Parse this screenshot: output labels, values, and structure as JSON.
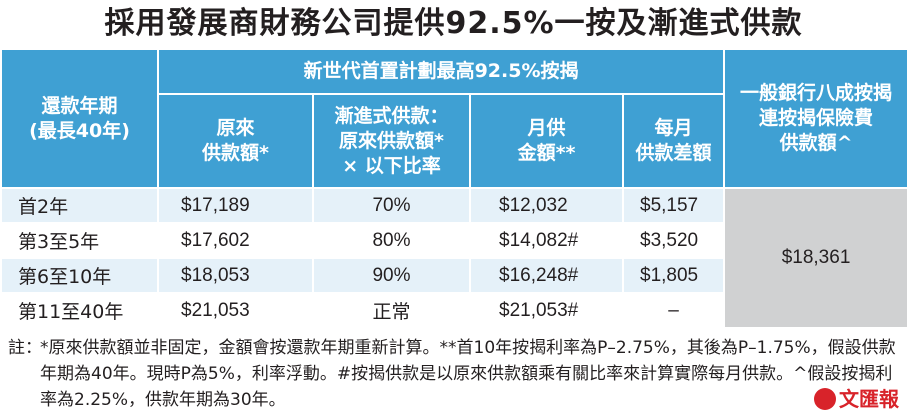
{
  "title": "採用發展商財務公司提供92.5%一按及漸進式供款",
  "table": {
    "col_term": [
      "還款年期",
      "(最長40年)"
    ],
    "group_header": "新世代首置計劃最高92.5%按揭",
    "col_original": [
      "原來",
      "供款額*"
    ],
    "col_ratio": [
      "漸進式供款：",
      "原來供款額*",
      "× 以下比率"
    ],
    "col_monthly": [
      "月供",
      "金額**"
    ],
    "col_diff": [
      "每月",
      "供款差額"
    ],
    "col_bank": [
      "一般銀行八成按揭",
      "連按揭保險費",
      "供款額^"
    ],
    "rows": [
      {
        "term": "首2年",
        "original": "$17,189",
        "ratio": "70%",
        "monthly": "$12,032",
        "diff": "$5,157"
      },
      {
        "term": "第3至5年",
        "original": "$17,602",
        "ratio": "80%",
        "monthly": "$14,082#",
        "diff": "$3,520"
      },
      {
        "term": "第6至10年",
        "original": "$18,053",
        "ratio": "90%",
        "monthly": "$16,248#",
        "diff": "$1,805"
      },
      {
        "term": "第11至40年",
        "original": "$21,053",
        "ratio": "正常",
        "monthly": "$21,053#",
        "diff": "–"
      }
    ],
    "bank_value": "$18,361"
  },
  "notes": {
    "label": "註：",
    "text": "*原來供款額並非固定，金額會按還款年期重新計算。**首10年按揭利率為P–2.75%，其後為P–1.75%，假設供款年期為40年。現時P為5%，利率浮動。#按揭供款是以原來供款額乘有關比率來計算實際每月供款。^假設按揭利率為2.25%，供款年期為30年。"
  },
  "logo": {
    "text": "文匯報"
  },
  "colors": {
    "header": "#3fa0d3",
    "row_alt": "#e5f1f9",
    "bank_cell": "#d0d1d2",
    "logo": "#d8232a"
  }
}
